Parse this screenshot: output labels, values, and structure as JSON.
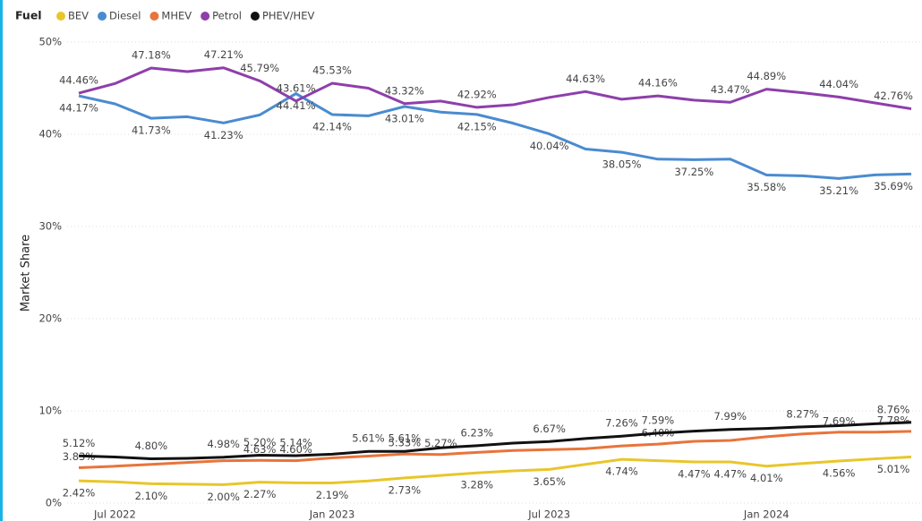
{
  "chart_data": {
    "type": "line",
    "legend_title": "Fuel",
    "y_label": "Market Share",
    "categories": [
      null,
      "Jul 2022",
      null,
      null,
      null,
      null,
      null,
      "Jan 2023",
      null,
      null,
      null,
      null,
      null,
      "Jul 2023",
      null,
      null,
      null,
      null,
      null,
      "Jan 2024",
      null,
      null,
      null,
      null
    ],
    "ylim": [
      0,
      50
    ],
    "yticks": [
      {
        "value": 0,
        "label": "0%"
      },
      {
        "value": 10,
        "label": "10%"
      },
      {
        "value": 20,
        "label": "20%"
      },
      {
        "value": 30,
        "label": "30%"
      },
      {
        "value": 40,
        "label": "40%"
      },
      {
        "value": 50,
        "label": "50%"
      }
    ],
    "grid": true,
    "legend": "top-left",
    "series": [
      {
        "name": "BEV",
        "color": "#e8c62b",
        "values": [
          2.42,
          2.3,
          2.1,
          2.05,
          2.0,
          2.27,
          2.2,
          2.19,
          2.4,
          2.73,
          3.0,
          3.28,
          3.5,
          3.65,
          4.2,
          4.74,
          4.6,
          4.47,
          4.47,
          4.01,
          4.3,
          4.56,
          4.8,
          5.01
        ],
        "value_labels": [
          "2.42%",
          null,
          "2.10%",
          null,
          "2.00%",
          "2.27%",
          null,
          "2.19%",
          null,
          "2.73%",
          null,
          "3.28%",
          null,
          "3.65%",
          null,
          "4.74%",
          null,
          "4.47%",
          "4.47%",
          "4.01%",
          null,
          "4.56%",
          null,
          "5.01%"
        ]
      },
      {
        "name": "Diesel",
        "color": "#4a8bd0",
        "values": [
          44.17,
          43.3,
          41.73,
          41.9,
          41.23,
          42.1,
          44.41,
          42.14,
          42.0,
          43.01,
          42.4,
          42.15,
          41.2,
          40.04,
          38.4,
          38.05,
          37.3,
          37.25,
          37.3,
          35.58,
          35.5,
          35.21,
          35.6,
          35.69
        ],
        "value_labels": [
          "44.17%",
          null,
          "41.73%",
          null,
          "41.23%",
          null,
          "44.41%",
          "42.14%",
          null,
          "43.01%",
          null,
          "42.15%",
          null,
          "40.04%",
          null,
          "38.05%",
          null,
          "37.25%",
          null,
          "35.58%",
          null,
          "35.21%",
          null,
          "35.69%"
        ]
      },
      {
        "name": "MHEV",
        "color": "#e8743b",
        "values": [
          3.83,
          4.0,
          4.2,
          4.4,
          4.6,
          4.63,
          4.6,
          4.9,
          5.1,
          5.33,
          5.27,
          5.5,
          5.7,
          5.8,
          5.9,
          6.2,
          6.4,
          6.7,
          6.8,
          7.2,
          7.5,
          7.69,
          7.7,
          7.78
        ],
        "value_labels": [
          "3.83%",
          null,
          null,
          null,
          null,
          "4.63%",
          "4.60%",
          null,
          null,
          "5.33%",
          "5.27%",
          null,
          null,
          null,
          null,
          null,
          "6.40%",
          null,
          null,
          null,
          null,
          "7.69%",
          null,
          "7.78%"
        ]
      },
      {
        "name": "Petrol",
        "color": "#8e3faa",
        "values": [
          44.46,
          45.5,
          47.18,
          46.8,
          47.21,
          45.79,
          43.61,
          45.53,
          45.0,
          43.32,
          43.6,
          42.92,
          43.2,
          44.0,
          44.63,
          43.8,
          44.16,
          43.7,
          43.47,
          44.89,
          44.5,
          44.04,
          43.4,
          42.76
        ],
        "value_labels": [
          "44.46%",
          null,
          "47.18%",
          null,
          "47.21%",
          "45.79%",
          "43.61%",
          "45.53%",
          null,
          "43.32%",
          null,
          "42.92%",
          null,
          null,
          "44.63%",
          null,
          "44.16%",
          null,
          "43.47%",
          "44.89%",
          null,
          "44.04%",
          null,
          "42.76%"
        ]
      },
      {
        "name": "PHEV/HEV",
        "color": "#111111",
        "values": [
          5.12,
          5.0,
          4.8,
          4.85,
          4.98,
          5.2,
          5.14,
          5.3,
          5.61,
          5.61,
          6.0,
          6.23,
          6.5,
          6.67,
          7.0,
          7.26,
          7.59,
          7.8,
          7.99,
          8.1,
          8.27,
          8.4,
          8.6,
          8.76
        ],
        "value_labels": [
          "5.12%",
          null,
          "4.80%",
          null,
          "4.98%",
          "5.20%",
          "5.14%",
          null,
          "5.61%",
          "5.61%",
          null,
          "6.23%",
          null,
          "6.67%",
          null,
          "7.26%",
          "7.59%",
          null,
          "7.99%",
          null,
          "8.27%",
          null,
          null,
          "8.76%"
        ]
      }
    ]
  }
}
